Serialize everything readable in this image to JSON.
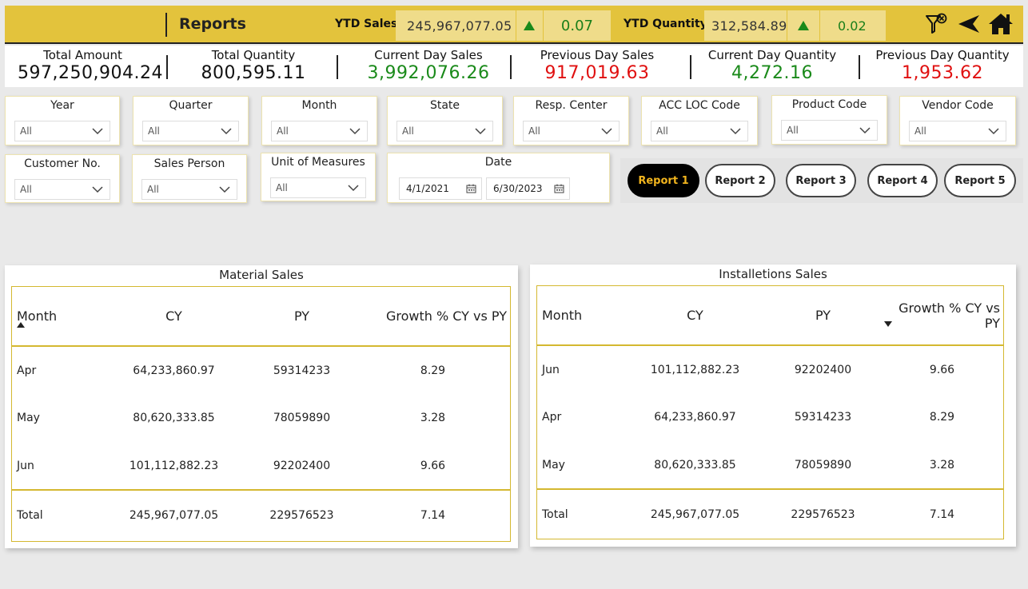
{
  "header": {
    "title": "Reports",
    "ytd_sales_label": "YTD Sales",
    "ytd_sales_value": "245,967,077.05",
    "ytd_sales_pct": "0.07",
    "ytd_qty_label": "YTD Quantity",
    "ytd_qty_value": "312,584.89",
    "ytd_qty_pct": "0.02",
    "icons": [
      "filter-clear-icon",
      "back-arrow-icon",
      "home-icon"
    ]
  },
  "kpis": [
    {
      "label": "Total Amount",
      "value": "597,250,904.24",
      "color": "black"
    },
    {
      "label": "Total Quantity",
      "value": "800,595.11",
      "color": "black"
    },
    {
      "label": "Current Day Sales",
      "value": "3,992,076.26",
      "color": "green"
    },
    {
      "label": "Previous Day Sales",
      "value": "917,019.63",
      "color": "red"
    },
    {
      "label": "Current Day Quantity",
      "value": "4,272.16",
      "color": "green"
    },
    {
      "label": "Previous Day Quantity",
      "value": "1,953.62",
      "color": "red"
    }
  ],
  "slicers": {
    "year": {
      "label": "Year",
      "value": "All"
    },
    "quarter": {
      "label": "Quarter",
      "value": "All"
    },
    "month": {
      "label": "Month",
      "value": "All"
    },
    "state": {
      "label": "State",
      "value": "All"
    },
    "resp_center": {
      "label": "Resp. Center",
      "value": "All"
    },
    "acc_loc": {
      "label": "ACC LOC Code",
      "value": "All"
    },
    "product": {
      "label": "Product Code",
      "value": "All"
    },
    "vendor": {
      "label": "Vendor Code",
      "value": "All"
    },
    "customer": {
      "label": "Customer No.",
      "value": "All"
    },
    "sales_person": {
      "label": "Sales Person",
      "value": "All"
    },
    "uom": {
      "label": "Unit of Measures",
      "value": "All"
    },
    "date": {
      "label": "Date",
      "from": "4/1/2021",
      "to": "6/30/2023"
    }
  },
  "report_buttons": [
    "Report 1",
    "Report 2",
    "Report 3",
    "Report 4",
    "Report 5"
  ],
  "material_sales": {
    "title": "Material Sales",
    "columns": [
      "Month",
      "CY",
      "PY",
      "Growth % CY vs PY"
    ],
    "rows": [
      [
        "Apr",
        "64,233,860.97",
        "59314233",
        "8.29"
      ],
      [
        "May",
        "80,620,333.85",
        "78059890",
        "3.28"
      ],
      [
        "Jun",
        "101,112,882.23",
        "92202400",
        "9.66"
      ]
    ],
    "total": [
      "Total",
      "245,967,077.05",
      "229576523",
      "7.14"
    ]
  },
  "installations_sales": {
    "title": "Installetions Sales",
    "columns": [
      "Month",
      "CY",
      "PY",
      "Growth % CY vs PY"
    ],
    "rows": [
      [
        "Jun",
        "101,112,882.23",
        "92202400",
        "9.66"
      ],
      [
        "Apr",
        "64,233,860.97",
        "59314233",
        "8.29"
      ],
      [
        "May",
        "80,620,333.85",
        "78059890",
        "3.28"
      ]
    ],
    "total": [
      "Total",
      "245,967,077.05",
      "229576523",
      "7.14"
    ]
  },
  "colors": {
    "accent": "#e3c33c",
    "green": "#1a8a1a",
    "red": "#e01010",
    "active_button_text": "#f2b51e"
  }
}
